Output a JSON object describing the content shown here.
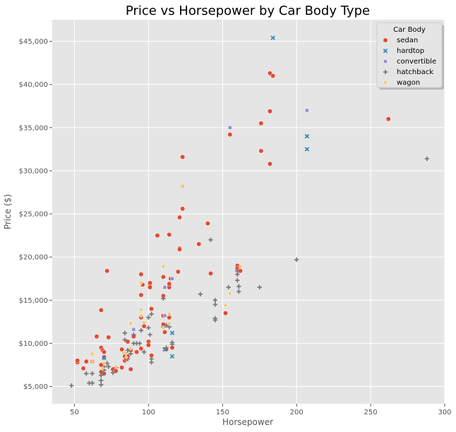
{
  "chart_data": {
    "type": "scatter",
    "title": "Price vs Horsepower by Car Body Type",
    "xlabel": "Horsepower",
    "ylabel": "Price ($)",
    "xlim": [
      35,
      300
    ],
    "ylim": [
      3000,
      47500
    ],
    "xticks": [
      50,
      100,
      150,
      200,
      250,
      300
    ],
    "yticks": [
      5000,
      10000,
      15000,
      20000,
      25000,
      30000,
      35000,
      40000,
      45000
    ],
    "ytick_labels": [
      "$5,000",
      "$10,000",
      "$15,000",
      "$20,000",
      "$25,000",
      "$30,000",
      "$35,000",
      "$40,000",
      "$45,000"
    ],
    "grid": true,
    "legend": {
      "title": "Car Body",
      "position": "top-right"
    },
    "series": [
      {
        "name": "sedan",
        "color": "#e24a33",
        "marker": "circle",
        "points": [
          [
            52,
            7800
          ],
          [
            52,
            8000
          ],
          [
            56,
            7100
          ],
          [
            58,
            7900
          ],
          [
            62,
            7900
          ],
          [
            65,
            10800
          ],
          [
            68,
            13850
          ],
          [
            68,
            9500
          ],
          [
            68,
            7500
          ],
          [
            68,
            6700
          ],
          [
            69,
            9200
          ],
          [
            70,
            9000
          ],
          [
            70,
            8400
          ],
          [
            70,
            6500
          ],
          [
            72,
            18400
          ],
          [
            73,
            10700
          ],
          [
            76,
            7000
          ],
          [
            78,
            6800
          ],
          [
            82,
            7200
          ],
          [
            82,
            9300
          ],
          [
            84,
            8500
          ],
          [
            84,
            8000
          ],
          [
            85,
            8200
          ],
          [
            86,
            8500
          ],
          [
            86,
            10200
          ],
          [
            88,
            7000
          ],
          [
            88,
            9200
          ],
          [
            90,
            10800
          ],
          [
            92,
            9000
          ],
          [
            95,
            18000
          ],
          [
            95,
            15600
          ],
          [
            95,
            13000
          ],
          [
            95,
            9400
          ],
          [
            96,
            16800
          ],
          [
            97,
            12000
          ],
          [
            100,
            10200
          ],
          [
            100,
            9800
          ],
          [
            101,
            16800
          ],
          [
            101,
            17000
          ],
          [
            101,
            16500
          ],
          [
            102,
            8600
          ],
          [
            102,
            14000
          ],
          [
            106,
            22500
          ],
          [
            110,
            17700
          ],
          [
            110,
            15500
          ],
          [
            110,
            12200
          ],
          [
            110,
            13200
          ],
          [
            111,
            11300
          ],
          [
            112,
            9300
          ],
          [
            114,
            22600
          ],
          [
            114,
            13000
          ],
          [
            114,
            16500
          ],
          [
            114,
            16900
          ],
          [
            115,
            17500
          ],
          [
            116,
            9500
          ],
          [
            120,
            18300
          ],
          [
            121,
            21000
          ],
          [
            121,
            20900
          ],
          [
            121,
            24600
          ],
          [
            123,
            31600
          ],
          [
            123,
            25600
          ],
          [
            134,
            21500
          ],
          [
            140,
            23900
          ],
          [
            142,
            18100
          ],
          [
            152,
            13500
          ],
          [
            155,
            34200
          ],
          [
            160,
            19000
          ],
          [
            160,
            18700
          ],
          [
            161,
            18400
          ],
          [
            162,
            18400
          ],
          [
            176,
            35500
          ],
          [
            176,
            32300
          ],
          [
            182,
            36900
          ],
          [
            182,
            30800
          ],
          [
            182,
            41300
          ],
          [
            184,
            41000
          ],
          [
            262,
            36000
          ]
        ]
      },
      {
        "name": "hardtop",
        "color": "#348abd",
        "marker": "x",
        "points": [
          [
            70,
            8300
          ],
          [
            111,
            9300
          ],
          [
            116,
            11200
          ],
          [
            116,
            8500
          ],
          [
            184,
            45400
          ],
          [
            207,
            34000
          ],
          [
            207,
            32500
          ]
        ]
      },
      {
        "name": "convertible",
        "color": "#988ed5",
        "marker": "square",
        "points": [
          [
            90,
            11600
          ],
          [
            111,
            16500
          ],
          [
            111,
            13200
          ],
          [
            116,
            17500
          ],
          [
            123,
            28200
          ],
          [
            155,
            35000
          ],
          [
            207,
            37000
          ]
        ]
      },
      {
        "name": "hatchback",
        "color": "#777777",
        "marker": "plus",
        "points": [
          [
            48,
            5100
          ],
          [
            58,
            6500
          ],
          [
            60,
            5400
          ],
          [
            62,
            5400
          ],
          [
            62,
            6500
          ],
          [
            68,
            5200
          ],
          [
            68,
            6300
          ],
          [
            68,
            5700
          ],
          [
            69,
            6500
          ],
          [
            70,
            6900
          ],
          [
            70,
            7300
          ],
          [
            72,
            7700
          ],
          [
            73,
            7300
          ],
          [
            76,
            6600
          ],
          [
            78,
            7200
          ],
          [
            84,
            8900
          ],
          [
            84,
            10400
          ],
          [
            84,
            11200
          ],
          [
            86,
            9200
          ],
          [
            86,
            8200
          ],
          [
            88,
            8800
          ],
          [
            90,
            10000
          ],
          [
            90,
            11000
          ],
          [
            92,
            10000
          ],
          [
            94,
            10000
          ],
          [
            95,
            11500
          ],
          [
            97,
            9000
          ],
          [
            100,
            11800
          ],
          [
            100,
            13000
          ],
          [
            101,
            11000
          ],
          [
            102,
            7800
          ],
          [
            102,
            8200
          ],
          [
            102,
            13400
          ],
          [
            110,
            15200
          ],
          [
            110,
            11900
          ],
          [
            112,
            12100
          ],
          [
            112,
            9500
          ],
          [
            114,
            11900
          ],
          [
            116,
            9900
          ],
          [
            116,
            10100
          ],
          [
            135,
            15700
          ],
          [
            142,
            22000
          ],
          [
            145,
            15000
          ],
          [
            145,
            14500
          ],
          [
            145,
            12900
          ],
          [
            145,
            12700
          ],
          [
            154,
            16500
          ],
          [
            160,
            17300
          ],
          [
            160,
            18000
          ],
          [
            160,
            18400
          ],
          [
            161,
            16000
          ],
          [
            161,
            16600
          ],
          [
            175,
            16500
          ],
          [
            200,
            19700
          ],
          [
            288,
            31400
          ]
        ]
      },
      {
        "name": "wagon",
        "color": "#fbc15e",
        "marker": "diamond",
        "points": [
          [
            62,
            8800
          ],
          [
            62,
            7900
          ],
          [
            69,
            7100
          ],
          [
            70,
            7700
          ],
          [
            78,
            7300
          ],
          [
            84,
            8900
          ],
          [
            85,
            8400
          ],
          [
            88,
            9400
          ],
          [
            88,
            12300
          ],
          [
            95,
            13900
          ],
          [
            95,
            13200
          ],
          [
            95,
            17000
          ],
          [
            97,
            12400
          ],
          [
            110,
            18900
          ],
          [
            110,
            11800
          ],
          [
            114,
            12300
          ],
          [
            114,
            13400
          ],
          [
            123,
            28200
          ],
          [
            152,
            14400
          ],
          [
            155,
            15800
          ],
          [
            162,
            18900
          ]
        ]
      }
    ]
  }
}
